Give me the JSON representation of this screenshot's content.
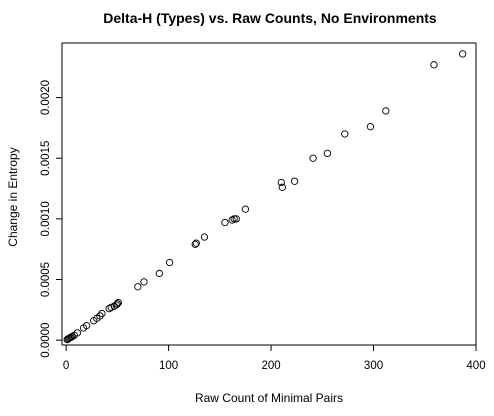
{
  "chart_data": {
    "type": "scatter",
    "title": "Delta-H (Types) vs. Raw Counts, No Environments",
    "xlabel": "Raw Count of Minimal Pairs",
    "ylabel": "Change in Entropy",
    "xlim": [
      -4,
      400
    ],
    "ylim": [
      -4e-05,
      0.00245
    ],
    "x_ticks": [
      0,
      100,
      200,
      300,
      400
    ],
    "x_tick_labels": [
      "0",
      "100",
      "200",
      "300",
      "400"
    ],
    "y_ticks": [
      0.0,
      0.0005,
      0.001,
      0.0015,
      0.002
    ],
    "y_tick_labels": [
      "0.0000",
      "0.0005",
      "0.0010",
      "0.0015",
      "0.0020"
    ],
    "grid": false,
    "marker": "open-circle",
    "series": [
      {
        "name": "points",
        "points": [
          [
            1,
            5e-06
          ],
          [
            2,
            1e-05
          ],
          [
            3,
            1.5e-05
          ],
          [
            4,
            2e-05
          ],
          [
            5,
            2.5e-05
          ],
          [
            6,
            3e-05
          ],
          [
            8,
            4e-05
          ],
          [
            11,
            6e-05
          ],
          [
            17,
            0.0001
          ],
          [
            20,
            0.00012
          ],
          [
            27,
            0.00016
          ],
          [
            30,
            0.00018
          ],
          [
            33,
            0.0002
          ],
          [
            35,
            0.00022
          ],
          [
            42,
            0.00026
          ],
          [
            44,
            0.00027
          ],
          [
            47,
            0.00028
          ],
          [
            49,
            0.00029
          ],
          [
            50,
            0.0003
          ],
          [
            51,
            0.00031
          ],
          [
            70,
            0.00044
          ],
          [
            76,
            0.00048
          ],
          [
            91,
            0.00055
          ],
          [
            101,
            0.00064
          ],
          [
            126,
            0.00079
          ],
          [
            127,
            0.0008
          ],
          [
            135,
            0.00085
          ],
          [
            155,
            0.00097
          ],
          [
            162,
            0.00099
          ],
          [
            164,
            0.001
          ],
          [
            166,
            0.001
          ],
          [
            175,
            0.00108
          ],
          [
            210,
            0.0013
          ],
          [
            211,
            0.00126
          ],
          [
            223,
            0.00131
          ],
          [
            241,
            0.0015
          ],
          [
            255,
            0.00154
          ],
          [
            272,
            0.0017
          ],
          [
            297,
            0.00176
          ],
          [
            312,
            0.00189
          ],
          [
            359,
            0.00227
          ],
          [
            387,
            0.00236
          ]
        ]
      }
    ]
  }
}
